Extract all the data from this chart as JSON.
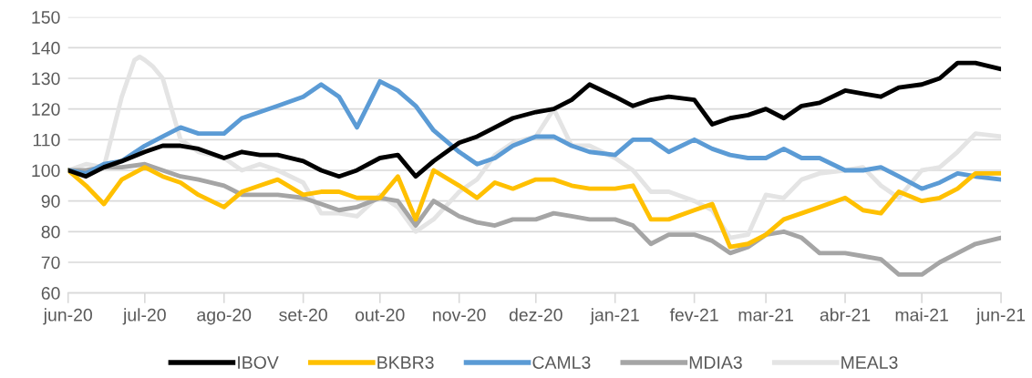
{
  "chart_data": {
    "type": "line",
    "line_style": "solid",
    "marker": "none",
    "grid": "y",
    "legend": "bottom",
    "x": [
      "2020-06-01",
      "2020-06-08",
      "2020-06-15",
      "2020-06-22",
      "2020-07-01",
      "2020-07-08",
      "2020-07-15",
      "2020-07-22",
      "2020-08-01",
      "2020-08-08",
      "2020-08-15",
      "2020-08-22",
      "2020-09-01",
      "2020-09-08",
      "2020-09-15",
      "2020-09-22",
      "2020-10-01",
      "2020-10-08",
      "2020-10-15",
      "2020-10-22",
      "2020-11-01",
      "2020-11-08",
      "2020-11-15",
      "2020-11-22",
      "2020-12-01",
      "2020-12-08",
      "2020-12-15",
      "2020-12-22",
      "2021-01-01",
      "2021-01-08",
      "2021-01-15",
      "2021-01-22",
      "2021-02-01",
      "2021-02-08",
      "2021-02-15",
      "2021-02-22",
      "2021-03-01",
      "2021-03-08",
      "2021-03-15",
      "2021-03-22",
      "2021-04-01",
      "2021-04-08",
      "2021-04-15",
      "2021-04-22",
      "2021-05-01",
      "2021-05-08",
      "2021-05-15",
      "2021-05-22",
      "2021-06-01"
    ],
    "xlim": [
      "2020-06-01",
      "2021-06-01"
    ],
    "xticks": [
      {
        "value": "2020-06-01",
        "label": "jun-20"
      },
      {
        "value": "2020-07-01",
        "label": "jul-20"
      },
      {
        "value": "2020-08-01",
        "label": "ago-20"
      },
      {
        "value": "2020-09-01",
        "label": "set-20"
      },
      {
        "value": "2020-10-01",
        "label": "out-20"
      },
      {
        "value": "2020-11-01",
        "label": "nov-20"
      },
      {
        "value": "2020-12-01",
        "label": "dez-20"
      },
      {
        "value": "2021-01-01",
        "label": "jan-21"
      },
      {
        "value": "2021-02-01",
        "label": "fev-21"
      },
      {
        "value": "2021-03-01",
        "label": "mar-21"
      },
      {
        "value": "2021-04-01",
        "label": "abr-21"
      },
      {
        "value": "2021-05-01",
        "label": "mai-21"
      },
      {
        "value": "2021-06-01",
        "label": "jun-21"
      }
    ],
    "ylim": [
      60,
      150
    ],
    "yticks": [
      60,
      70,
      80,
      90,
      100,
      110,
      120,
      130,
      140,
      150
    ],
    "series": [
      {
        "name": "IBOV",
        "color": "#000000",
        "values": [
          100,
          98,
          101,
          103,
          106,
          108,
          108,
          107,
          104,
          106,
          105,
          105,
          103,
          100,
          98,
          100,
          104,
          105,
          98,
          103,
          109,
          111,
          114,
          117,
          119,
          120,
          123,
          128,
          124,
          121,
          123,
          124,
          123,
          115,
          117,
          118,
          120,
          117,
          121,
          122,
          126,
          125,
          124,
          127,
          128,
          130,
          135,
          135,
          133
        ]
      },
      {
        "name": "BKBR3",
        "color": "#ffc000",
        "values": [
          100,
          95,
          89,
          97,
          101,
          98,
          96,
          92,
          88,
          93,
          95,
          97,
          92,
          93,
          93,
          91,
          91,
          98,
          84,
          100,
          95,
          91,
          96,
          94,
          97,
          97,
          95,
          94,
          94,
          95,
          84,
          84,
          87,
          89,
          75,
          76,
          79,
          84,
          86,
          88,
          91,
          87,
          86,
          93,
          90,
          91,
          94,
          99,
          99
        ]
      },
      {
        "name": "CAML3",
        "color": "#5b9bd5",
        "values": [
          100,
          99,
          102,
          103,
          108,
          111,
          114,
          112,
          112,
          117,
          119,
          121,
          124,
          128,
          124,
          114,
          129,
          126,
          121,
          113,
          106,
          102,
          104,
          108,
          111,
          111,
          108,
          106,
          105,
          110,
          110,
          106,
          110,
          107,
          105,
          104,
          104,
          107,
          104,
          104,
          100,
          100,
          101,
          98,
          94,
          96,
          99,
          98,
          97
        ]
      },
      {
        "name": "MDIA3",
        "color": "#a5a5a5",
        "values": [
          100,
          100,
          101,
          101,
          102,
          100,
          98,
          97,
          95,
          92,
          92,
          92,
          91,
          89,
          87,
          88,
          91,
          90,
          82,
          90,
          85,
          83,
          82,
          84,
          84,
          86,
          85,
          84,
          84,
          82,
          76,
          79,
          79,
          77,
          73,
          75,
          79,
          80,
          78,
          73,
          73,
          72,
          71,
          66,
          66,
          70,
          73,
          76,
          78
        ]
      },
      {
        "name": "MEAL3",
        "color": "#e4e4e4",
        "x": [
          "2020-06-01",
          "2020-06-08",
          "2020-06-15",
          "2020-06-22",
          "2020-06-27",
          "2020-06-29",
          "2020-07-01",
          "2020-07-04",
          "2020-07-08",
          "2020-07-15",
          "2020-07-22",
          "2020-08-01",
          "2020-08-08",
          "2020-08-15",
          "2020-08-22",
          "2020-09-01",
          "2020-09-08",
          "2020-09-15",
          "2020-09-22",
          "2020-10-01",
          "2020-10-08",
          "2020-10-15",
          "2020-10-22",
          "2020-11-01",
          "2020-11-08",
          "2020-11-15",
          "2020-11-22",
          "2020-12-01",
          "2020-12-08",
          "2020-12-15",
          "2020-12-22",
          "2021-01-01",
          "2021-01-08",
          "2021-01-15",
          "2021-01-22",
          "2021-02-01",
          "2021-02-08",
          "2021-02-15",
          "2021-02-22",
          "2021-03-01",
          "2021-03-08",
          "2021-03-15",
          "2021-03-22",
          "2021-04-01",
          "2021-04-08",
          "2021-04-15",
          "2021-04-22",
          "2021-05-01",
          "2021-05-08",
          "2021-05-15",
          "2021-05-22",
          "2021-06-01"
        ],
        "values": [
          100,
          102,
          101,
          124,
          136,
          137,
          136,
          134,
          130,
          110,
          106,
          104,
          100,
          102,
          100,
          96,
          86,
          86,
          85,
          92,
          88,
          80,
          84,
          93,
          97,
          105,
          109,
          111,
          120,
          108,
          108,
          104,
          100,
          93,
          93,
          90,
          87,
          78,
          79,
          92,
          91,
          97,
          99,
          100,
          101,
          95,
          91,
          100,
          101,
          106,
          112,
          111
        ]
      }
    ]
  }
}
